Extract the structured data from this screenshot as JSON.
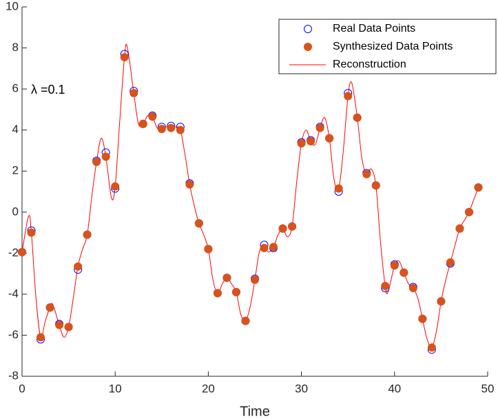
{
  "chart_data": {
    "type": "scatter",
    "xlabel": "Time",
    "annotation": "λ =0.1",
    "xlim": [
      0,
      50
    ],
    "xticks": [
      0,
      10,
      20,
      30,
      40,
      50
    ],
    "ylim": [
      -8,
      10
    ],
    "yticks": [
      -8,
      -6,
      -4,
      -2,
      0,
      2,
      4,
      6,
      8,
      10
    ],
    "legend": "upper right",
    "x": [
      0,
      1,
      2,
      3,
      4,
      5,
      6,
      7,
      8,
      9,
      10,
      11,
      12,
      13,
      14,
      15,
      16,
      17,
      18,
      19,
      20,
      21,
      22,
      23,
      24,
      25,
      26,
      27,
      28,
      29,
      30,
      31,
      32,
      33,
      34,
      35,
      36,
      37,
      38,
      39,
      40,
      41,
      42,
      43,
      44,
      45,
      46,
      47,
      48,
      49
    ],
    "series": [
      {
        "name": "Real Data Points",
        "color": "#0000ff",
        "marker": "open-circle",
        "values": [
          -1.95,
          -0.9,
          -6.2,
          -4.65,
          -5.45,
          -5.6,
          -2.8,
          -1.1,
          2.5,
          2.9,
          1.15,
          7.7,
          5.9,
          4.3,
          4.7,
          4.15,
          4.2,
          4.15,
          1.4,
          -0.55,
          -1.8,
          -3.95,
          -3.2,
          -3.9,
          -5.3,
          -3.25,
          -1.6,
          -1.75,
          -0.8,
          -0.7,
          3.4,
          3.5,
          4.15,
          3.6,
          1.0,
          5.8,
          4.6,
          1.9,
          1.3,
          -3.7,
          -2.55,
          -2.95,
          -3.65,
          -5.2,
          -6.7,
          -4.35,
          -2.5,
          -0.8,
          0,
          1.2
        ]
      },
      {
        "name": "Synthesized Data Points",
        "color": "#d95319",
        "marker": "filled-circle",
        "values": [
          -1.95,
          -1.0,
          -6.1,
          -4.65,
          -5.5,
          -5.6,
          -2.65,
          -1.1,
          2.45,
          2.7,
          1.25,
          7.55,
          5.8,
          4.3,
          4.65,
          4.05,
          4.1,
          4.0,
          1.35,
          -0.55,
          -1.8,
          -3.95,
          -3.2,
          -3.9,
          -5.3,
          -3.3,
          -1.75,
          -1.7,
          -0.8,
          -0.7,
          3.35,
          3.45,
          4.1,
          3.6,
          1.15,
          5.65,
          4.6,
          1.85,
          1.3,
          -3.6,
          -2.6,
          -2.95,
          -3.7,
          -5.2,
          -6.6,
          -4.35,
          -2.45,
          -0.8,
          0,
          1.2
        ]
      },
      {
        "name": "Reconstruction",
        "color": "#ff0000",
        "marker": "line",
        "x": [
          0,
          0.7,
          1,
          1.5,
          2,
          2.5,
          3,
          3.3,
          4,
          4.5,
          5,
          5.5,
          6,
          6.5,
          7,
          7.5,
          8,
          8.5,
          9,
          9.6,
          10,
          10.5,
          11,
          11.3,
          12,
          12.5,
          13,
          13.5,
          14,
          14.5,
          15,
          15.5,
          16,
          16.5,
          17,
          17.5,
          18,
          18.5,
          19,
          19.5,
          20,
          20.5,
          21,
          21.5,
          22,
          22.5,
          23,
          23.5,
          24,
          24.5,
          25,
          25.5,
          26,
          26.5,
          27,
          27.5,
          28,
          28.5,
          29,
          29.5,
          30,
          30.5,
          31,
          31.5,
          32,
          32.5,
          33,
          33.5,
          34,
          34.5,
          35,
          35.4,
          36,
          36.5,
          37,
          37.5,
          38,
          38.5,
          39,
          39.3,
          40,
          40.5,
          41,
          41.5,
          42,
          42.5,
          43,
          43.5,
          44,
          44.5,
          45,
          45.5,
          46,
          46.5,
          47,
          47.5,
          48,
          48.5,
          49
        ],
        "values": [
          -1.95,
          -0.2,
          -1.0,
          -4.2,
          -6.1,
          -5.3,
          -4.65,
          -4.5,
          -5.5,
          -6.1,
          -5.6,
          -4.2,
          -2.65,
          -1.8,
          -1.1,
          0.8,
          2.45,
          3.6,
          2.7,
          0.7,
          1.25,
          4.5,
          7.55,
          8.05,
          5.8,
          4.3,
          4.3,
          4.7,
          4.65,
          4.1,
          4.05,
          4.15,
          4.1,
          4.15,
          4.0,
          2.8,
          1.35,
          0.3,
          -0.55,
          -1.1,
          -1.8,
          -3.3,
          -3.95,
          -3.5,
          -3.2,
          -3.5,
          -3.9,
          -5.0,
          -5.3,
          -4.6,
          -3.3,
          -1.9,
          -1.75,
          -1.95,
          -1.7,
          -1.1,
          -0.8,
          -1.2,
          -0.7,
          1.5,
          3.35,
          4.0,
          3.45,
          3.3,
          4.1,
          4.6,
          3.6,
          1.6,
          1.15,
          3.0,
          5.65,
          6.3,
          4.6,
          2.6,
          1.85,
          2.1,
          1.3,
          -1.5,
          -3.6,
          -3.9,
          -2.6,
          -2.4,
          -2.95,
          -3.5,
          -3.7,
          -4.2,
          -5.2,
          -6.2,
          -6.6,
          -5.8,
          -4.35,
          -3.3,
          -2.45,
          -1.6,
          -0.8,
          -0.4,
          0,
          0.6,
          1.2
        ]
      }
    ]
  }
}
